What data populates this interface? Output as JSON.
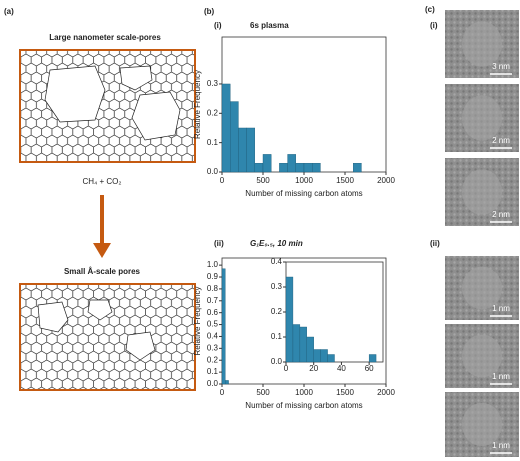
{
  "panel_labels": [
    "(a)",
    "(b)",
    "(c)"
  ],
  "sub_labels": {
    "b": [
      "(i)",
      "(ii)"
    ],
    "c": [
      "(i)",
      "(ii)"
    ]
  },
  "diagram": {
    "top_caption": "Large nanometer scale-pores",
    "reagent": "CH₄ + CO₂",
    "bottom_caption": "Small Å-scale pores"
  },
  "chart_data": [
    {
      "type": "histogram",
      "title": "6s plasma",
      "xlabel": "Number of missing carbon atoms",
      "ylabel": "Relative Frequency",
      "bins": [
        0,
        100,
        200,
        300,
        400,
        500,
        600,
        700,
        800,
        900,
        1000,
        1100,
        1200,
        1300,
        1400,
        1500,
        1600,
        1700
      ],
      "values": [
        0.3,
        0.24,
        0.15,
        0.15,
        0.03,
        0.06,
        0,
        0.03,
        0.06,
        0.03,
        0.03,
        0.03,
        0,
        0,
        0,
        0,
        0.03
      ],
      "color": "#2f86ad",
      "xlim": [
        0,
        2000
      ],
      "ylim": [
        0,
        0.46
      ],
      "xticks": [
        0,
        500,
        1000,
        1500,
        2000
      ],
      "yticks": [
        {
          "value": 0,
          "label": "0.0"
        },
        {
          "value": 0.1,
          "label": "0.1"
        },
        {
          "value": 0.2,
          "label": "0.2"
        },
        {
          "value": 0.3,
          "label": "0.3"
        }
      ]
    },
    {
      "type": "histogram",
      "title": "G₁E₀.₅, 10 min",
      "xlabel": "Number of missing carbon atoms",
      "ylabel": "Relative Frequency",
      "bins": [
        0,
        40,
        80
      ],
      "values": [
        0.97,
        0.03
      ],
      "color": "#2f86ad",
      "xlim": [
        0,
        2000
      ],
      "ylim": [
        0,
        1.06
      ],
      "xticks": [
        0,
        500,
        1000,
        1500,
        2000
      ],
      "yticks": [
        {
          "value": 0,
          "label": "0.0"
        },
        0.1,
        0.2,
        0.3,
        0.4,
        0.5,
        0.6,
        0.7,
        0.8,
        0.9,
        {
          "value": 1,
          "label": "1.0"
        }
      ]
    },
    {
      "type": "histogram",
      "bins": [
        0,
        5,
        10,
        15,
        20,
        25,
        30,
        35,
        40,
        45,
        50,
        55,
        60,
        65
      ],
      "values": [
        0.34,
        0.15,
        0.14,
        0.1,
        0.05,
        0.05,
        0.03,
        0,
        0,
        0,
        0,
        0,
        0.03
      ],
      "color": "#2f86ad",
      "xlim": [
        0,
        70
      ],
      "ylim": [
        0,
        0.4
      ],
      "xticks": [
        0,
        20,
        40,
        60
      ],
      "yticks": [
        {
          "value": 0,
          "label": "0.0"
        },
        0.1,
        0.2,
        0.3,
        0.4
      ]
    }
  ],
  "images": {
    "scale_bars": [
      "3 nm",
      "2 nm",
      "2 nm",
      "1 nm",
      "1 nm",
      "1 nm"
    ]
  }
}
